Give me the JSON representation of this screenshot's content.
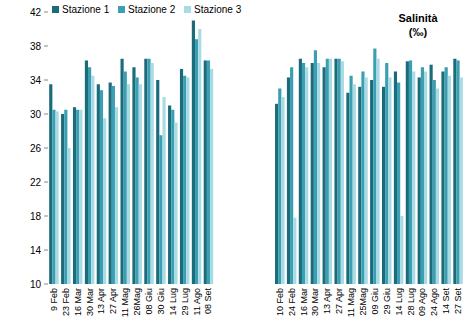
{
  "chart_data": {
    "type": "bar",
    "title": "Salinità",
    "subtitle": "(‰)",
    "categories": [
      "9 Feb",
      "23 Feb",
      "16 Mar",
      "30 Mar",
      "13 Apr",
      "27 Apr",
      "11 Mag",
      "26Mag",
      "08 Giu",
      "30 Giu",
      "14 Lug",
      "29 Lug",
      "11 Ago",
      "08 Set",
      null,
      null,
      null,
      null,
      null,
      "10 Feb",
      "24 Feb",
      "16 Mar",
      "30 Mar",
      "13 Apr",
      "27 Apr",
      "11 Mag",
      "25Mag",
      "09 Giu",
      "29 Giu",
      "14 Lug",
      "28 Lug",
      "09 Ago",
      "24 Ago",
      "14 Set",
      "27 Set"
    ],
    "series": [
      {
        "name": "Stazione 1",
        "color": "#1c6b7a",
        "values": [
          33.5,
          30,
          30.8,
          36.3,
          33.5,
          33.7,
          36.5,
          35.5,
          36.5,
          34,
          31,
          35.3,
          41,
          36.3,
          null,
          null,
          null,
          null,
          null,
          31.2,
          34.3,
          36.5,
          36,
          35.5,
          36.5,
          32.5,
          33.2,
          34,
          33.2,
          35,
          36.2,
          34.3,
          35.8,
          35,
          36.5
        ]
      },
      {
        "name": "Stazione 2",
        "color": "#3a9fb2",
        "values": [
          30.5,
          30.5,
          30.5,
          35.5,
          32.8,
          33.3,
          35,
          34.3,
          36.5,
          27.5,
          30.5,
          34.5,
          38.8,
          36.3,
          null,
          null,
          null,
          null,
          null,
          33,
          35.5,
          36,
          37.5,
          36.5,
          36.5,
          34.5,
          35,
          37.7,
          36,
          33.7,
          36.3,
          35.5,
          34,
          35.5,
          36.3
        ]
      },
      {
        "name": "Stazione 3",
        "color": "#a9dbe4",
        "values": [
          30.3,
          26,
          30.5,
          34.5,
          29.5,
          30.8,
          33.5,
          33.5,
          36,
          32,
          29,
          34.3,
          40,
          35.3,
          null,
          null,
          null,
          null,
          null,
          32,
          17.8,
          35.5,
          36,
          36.5,
          36.2,
          33.5,
          34.3,
          36.5,
          34.3,
          18,
          35,
          35,
          33,
          34.5,
          34.3
        ]
      }
    ],
    "ylim": [
      10,
      42
    ],
    "yticks": [
      10,
      14,
      18,
      22,
      26,
      30,
      34,
      38,
      42
    ],
    "grid": false,
    "legend": "top"
  }
}
